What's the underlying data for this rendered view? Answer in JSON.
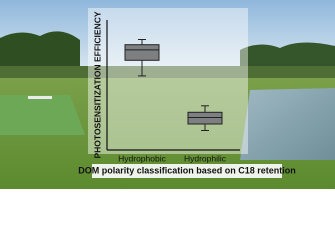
{
  "chart_data": {
    "type": "box",
    "ylabel": "PHOTOSENSITIZATION EFFICIENCY",
    "xlabel": "DOM polarity classification based on C18 retention",
    "categories": [
      "Hydrophobic",
      "Hydrophilic"
    ],
    "boxes": [
      {
        "min": 57,
        "q1": 69,
        "median": 77,
        "q3": 81,
        "max": 85
      },
      {
        "min": 15,
        "q1": 20,
        "median": 25,
        "q3": 29,
        "max": 34
      }
    ],
    "color": "#7d7f80",
    "ylim": [
      0,
      100
    ]
  }
}
